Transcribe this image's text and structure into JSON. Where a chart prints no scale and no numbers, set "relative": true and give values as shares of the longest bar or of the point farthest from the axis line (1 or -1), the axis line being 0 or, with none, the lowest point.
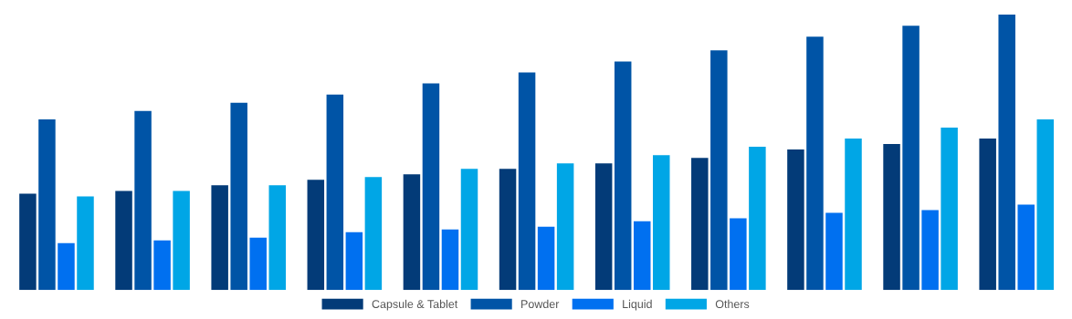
{
  "chart_data": {
    "type": "bar",
    "relative": true,
    "legend": "bottom",
    "grid": false,
    "categories": [
      null,
      null,
      null,
      null,
      null,
      null,
      null,
      null,
      null,
      null,
      null
    ],
    "series": [
      {
        "name": "Capsule & Tablet",
        "color": "#033b78",
        "values": [
          0.35,
          0.36,
          0.38,
          0.4,
          0.42,
          0.44,
          0.46,
          0.48,
          0.51,
          0.53,
          0.55
        ]
      },
      {
        "name": "Powder",
        "color": "#0054a6",
        "values": [
          0.62,
          0.65,
          0.68,
          0.71,
          0.75,
          0.79,
          0.83,
          0.87,
          0.92,
          0.96,
          1.0
        ]
      },
      {
        "name": "Liquid",
        "color": "#0070f0",
        "values": [
          0.17,
          0.18,
          0.19,
          0.21,
          0.22,
          0.23,
          0.25,
          0.26,
          0.28,
          0.29,
          0.31
        ]
      },
      {
        "name": "Others",
        "color": "#00a6e6",
        "values": [
          0.34,
          0.36,
          0.38,
          0.41,
          0.44,
          0.46,
          0.49,
          0.52,
          0.55,
          0.59,
          0.62
        ]
      }
    ]
  }
}
